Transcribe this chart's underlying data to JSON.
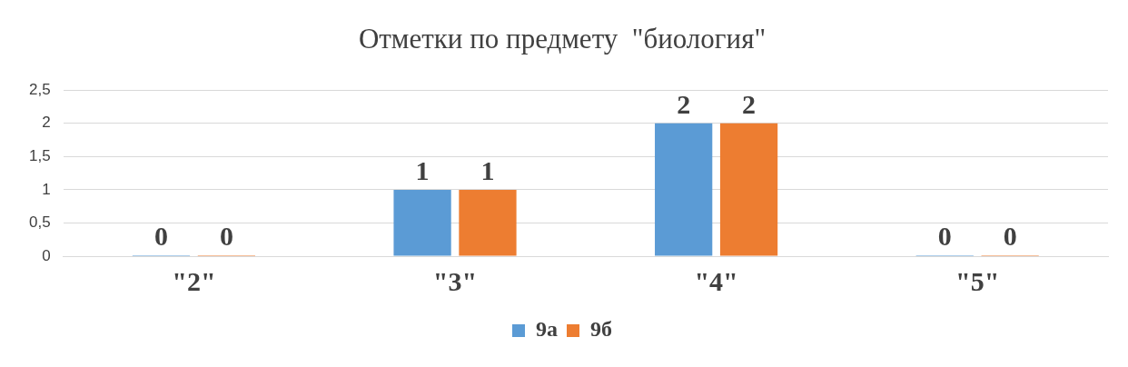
{
  "chart_data": {
    "type": "bar",
    "title": "Отметки по предмету  \"биология\"",
    "categories": [
      "\"2\"",
      "\"3\"",
      "\"4\"",
      "\"5\""
    ],
    "series": [
      {
        "name": "9а",
        "color": "#5b9bd5",
        "values": [
          0,
          1,
          2,
          0
        ]
      },
      {
        "name": "9б",
        "color": "#ed7d31",
        "values": [
          0,
          1,
          2,
          0
        ]
      }
    ],
    "ylim": [
      0,
      2.5
    ],
    "yticks": [
      0,
      {
        "value": 0.5,
        "label": "0,5"
      },
      1,
      {
        "value": 1.5,
        "label": "1,5"
      },
      2,
      {
        "value": 2.5,
        "label": "2,5"
      }
    ],
    "grid": "y",
    "legend": "bottom",
    "data_labels": true
  }
}
